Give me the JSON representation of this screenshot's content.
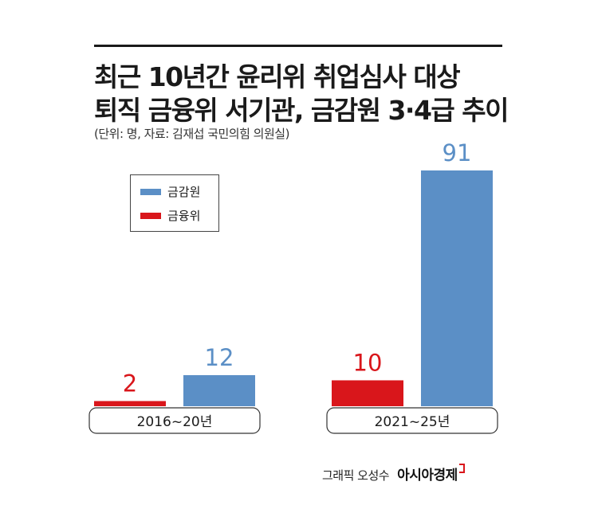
{
  "title_line1": "최근 10년간 윤리위 취업심사 대상",
  "title_line2": "퇴직 금융위 서기관, 금감원 3·4급 추이",
  "subtitle": "(단위: 명, 자료: 김재섭 국민의힘 의원실)",
  "credit": {
    "byline": "그래픽 오성수",
    "brand": "아시아경제"
  },
  "colors": {
    "fss": "#5b8fc6",
    "fsc": "#d9161b",
    "fss_label": "#5b8fc6",
    "fsc_label": "#d9161b"
  },
  "chart_data": {
    "type": "bar",
    "categories": [
      "2016~20년",
      "2021~25년"
    ],
    "series": [
      {
        "name": "금융위",
        "values": [
          2,
          10
        ]
      },
      {
        "name": "금감원",
        "values": [
          12,
          91
        ]
      }
    ],
    "title": "최근 10년간 윤리위 취업심사 대상 퇴직 금융위 서기관, 금감원 3·4급 추이",
    "subtitle": "(단위: 명, 자료: 김재섭 국민의힘 의원실)",
    "unit": "명",
    "ylim": [
      0,
      91
    ],
    "legend_position": "top-left",
    "grid": false,
    "data_labels": true
  }
}
